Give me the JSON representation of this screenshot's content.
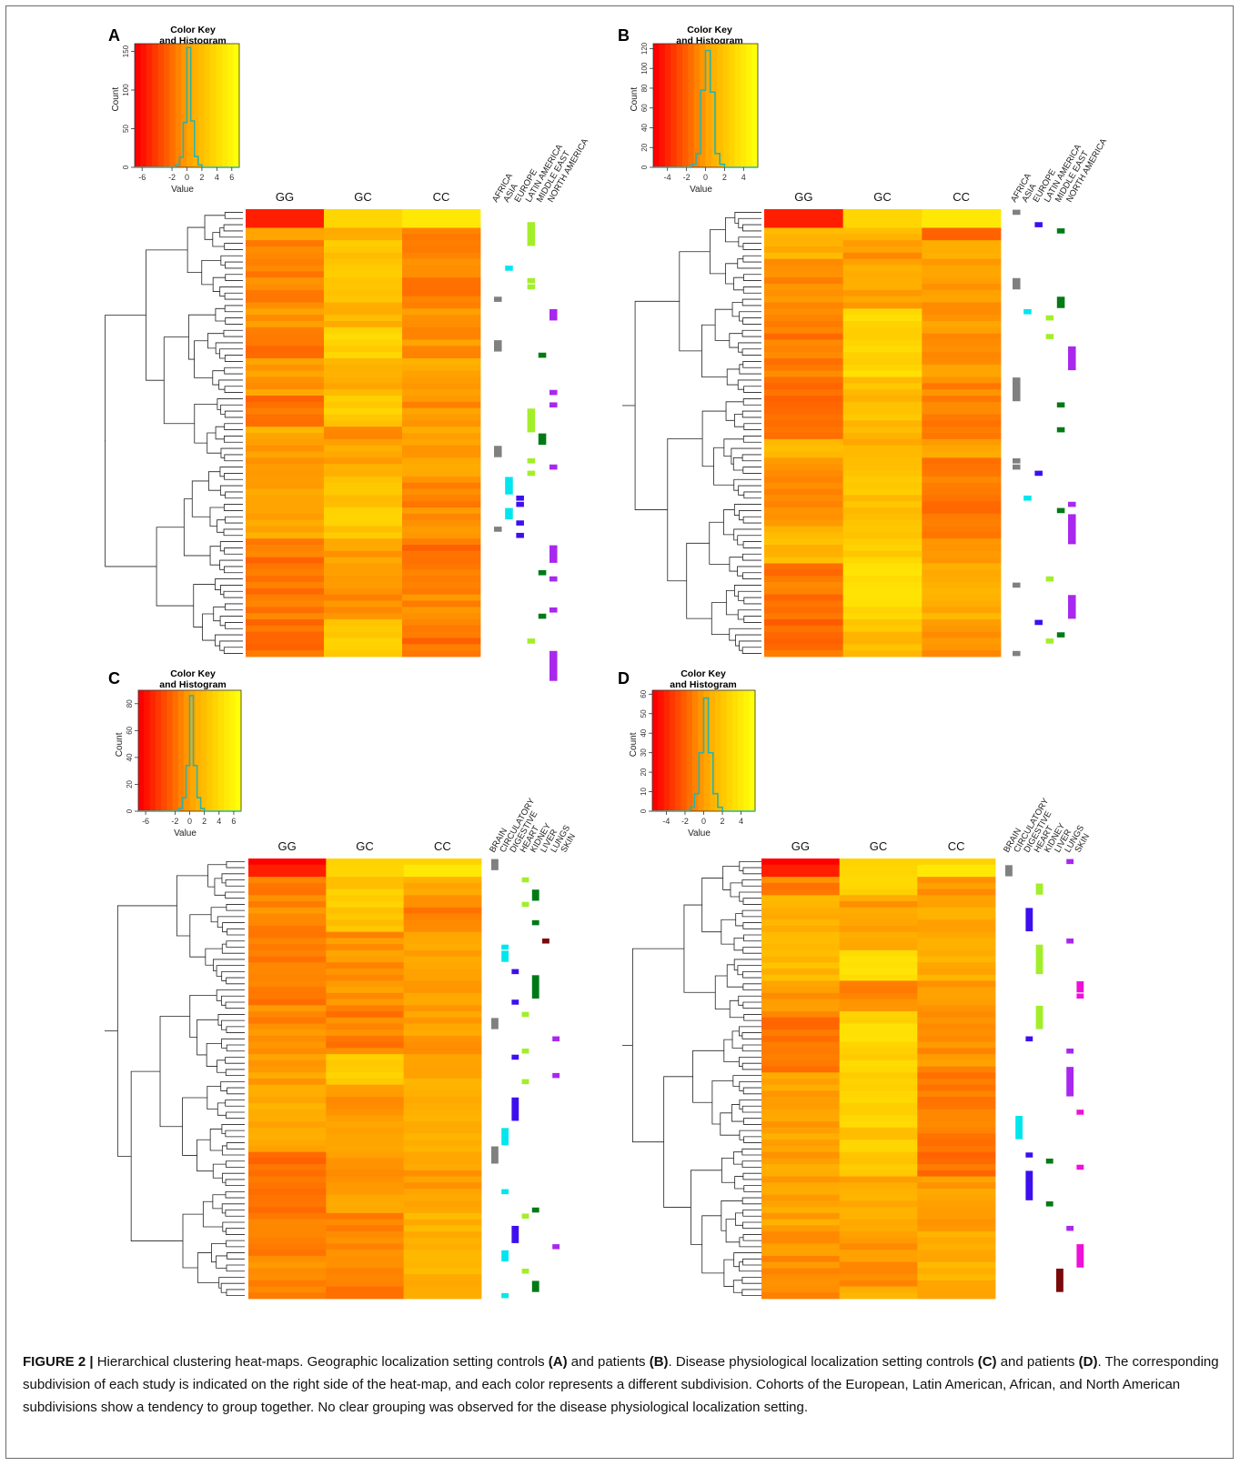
{
  "colors": {
    "africa": "#808080",
    "asia": "#00e5ee",
    "europe": "#3d0fee",
    "latin_america": "#a3ee2a",
    "middle_east": "#007a15",
    "north_america": "#a828ee",
    "brain": "#808080",
    "circulatory": "#00e5ee",
    "digestive": "#3d0fee",
    "heart": "#a3ee2a",
    "kidney": "#007a15",
    "liver": "#7a0a0a",
    "lungs": "#a828ee",
    "skin": "#ee10d8",
    "histogram_line": "#2ab3a8"
  },
  "chart_data": [
    {
      "type": "heatmap",
      "panel": "A",
      "columns": [
        "GG",
        "GC",
        "CC"
      ],
      "annotation_labels": [
        "AFRICA",
        "ASIA",
        "EUROPE",
        "LATIN AMERICA",
        "MIDDLE EAST",
        "NORTH AMERICA"
      ],
      "color_key": {
        "title_line1": "Color Key",
        "title_line2": "and Histogram",
        "xlabel": "Value",
        "ylabel": "Count",
        "x_ticks": [
          "-6",
          "-2",
          "0",
          "2",
          "4",
          "6"
        ],
        "y_ticks": [
          "0",
          "50",
          "100",
          "150"
        ],
        "xlim": [
          -7,
          7
        ],
        "ylim": [
          0,
          160
        ],
        "hist_bins": [
          -1.5,
          -1,
          -0.5,
          0,
          0.5,
          1,
          1.5,
          2
        ],
        "hist_counts": [
          3,
          13,
          58,
          155,
          60,
          14,
          3
        ]
      }
    },
    {
      "type": "heatmap",
      "panel": "B",
      "columns": [
        "GG",
        "GC",
        "CC"
      ],
      "annotation_labels": [
        "AFRICA",
        "ASIA",
        "EUROPE",
        "LATIN AMERICA",
        "MIDDLE EAST",
        "NORTH AMERICA"
      ],
      "color_key": {
        "title_line1": "Color Key",
        "title_line2": "and Histogram",
        "xlabel": "Value",
        "ylabel": "Count",
        "x_ticks": [
          "-4",
          "-2",
          "0",
          "2",
          "4"
        ],
        "y_ticks": [
          "0",
          "20",
          "40",
          "60",
          "80",
          "100",
          "120"
        ],
        "xlim": [
          -5.5,
          5.5
        ],
        "ylim": [
          0,
          125
        ],
        "hist_bins": [
          -1.5,
          -1,
          -0.5,
          0,
          0.5,
          1,
          1.5,
          2
        ],
        "hist_counts": [
          3,
          14,
          78,
          118,
          76,
          14,
          3
        ]
      }
    },
    {
      "type": "heatmap",
      "panel": "C",
      "columns": [
        "GG",
        "GC",
        "CC"
      ],
      "annotation_labels": [
        "BRAIN",
        "CIRCULATORY",
        "DIGESTIVE",
        "HEART",
        "KIDNEY",
        "LIVER",
        "LUNGS",
        "SKIN"
      ],
      "color_key": {
        "title_line1": "Color Key",
        "title_line2": "and Histogram",
        "xlabel": "Value",
        "ylabel": "Count",
        "x_ticks": [
          "-6",
          "-2",
          "0",
          "2",
          "4",
          "6"
        ],
        "y_ticks": [
          "0",
          "20",
          "40",
          "60",
          "80"
        ],
        "xlim": [
          -7,
          7
        ],
        "ylim": [
          0,
          90
        ],
        "hist_bins": [
          -1.5,
          -1,
          -0.5,
          0,
          0.5,
          1,
          1.5,
          2
        ],
        "hist_counts": [
          2,
          10,
          34,
          86,
          34,
          10,
          2
        ]
      }
    },
    {
      "type": "heatmap",
      "panel": "D",
      "columns": [
        "GG",
        "GC",
        "CC"
      ],
      "annotation_labels": [
        "BRAIN",
        "CIRCULATORY",
        "DIGESTIVE",
        "HEART",
        "KIDNEY",
        "LIVER",
        "LUNGS",
        "SKIN"
      ],
      "color_key": {
        "title_line1": "Color Key",
        "title_line2": "and Histogram",
        "xlabel": "Value",
        "ylabel": "Count",
        "x_ticks": [
          "-4",
          "-2",
          "0",
          "2",
          "4"
        ],
        "y_ticks": [
          "0",
          "10",
          "20",
          "30",
          "40",
          "50",
          "60"
        ],
        "xlim": [
          -5.5,
          5.5
        ],
        "ylim": [
          0,
          62
        ],
        "hist_bins": [
          -1.5,
          -1,
          -0.5,
          0,
          0.5,
          1,
          1.5,
          2
        ],
        "hist_counts": [
          2,
          9,
          30,
          58,
          30,
          9,
          2
        ]
      }
    }
  ],
  "caption": {
    "label": "FIGURE 2 |",
    "segments": [
      {
        "t": " Hierarchical clustering heat-maps. Geographic localization setting controls ",
        "b": false
      },
      {
        "t": "(A)",
        "b": true
      },
      {
        "t": " and patients ",
        "b": false
      },
      {
        "t": "(B)",
        "b": true
      },
      {
        "t": ". Disease physiological localization setting controls ",
        "b": false
      },
      {
        "t": "(C)",
        "b": true
      },
      {
        "t": " and patients ",
        "b": false
      },
      {
        "t": "(D)",
        "b": true
      },
      {
        "t": ". The corresponding subdivision of each study is indicated on the right side of the heat-map, and each color represents a different subdivision. Cohorts of the European, Latin American, African, and North American subdivisions show a tendency to group together. No clear grouping was observed for the disease physiological localization setting.",
        "b": false
      }
    ]
  }
}
